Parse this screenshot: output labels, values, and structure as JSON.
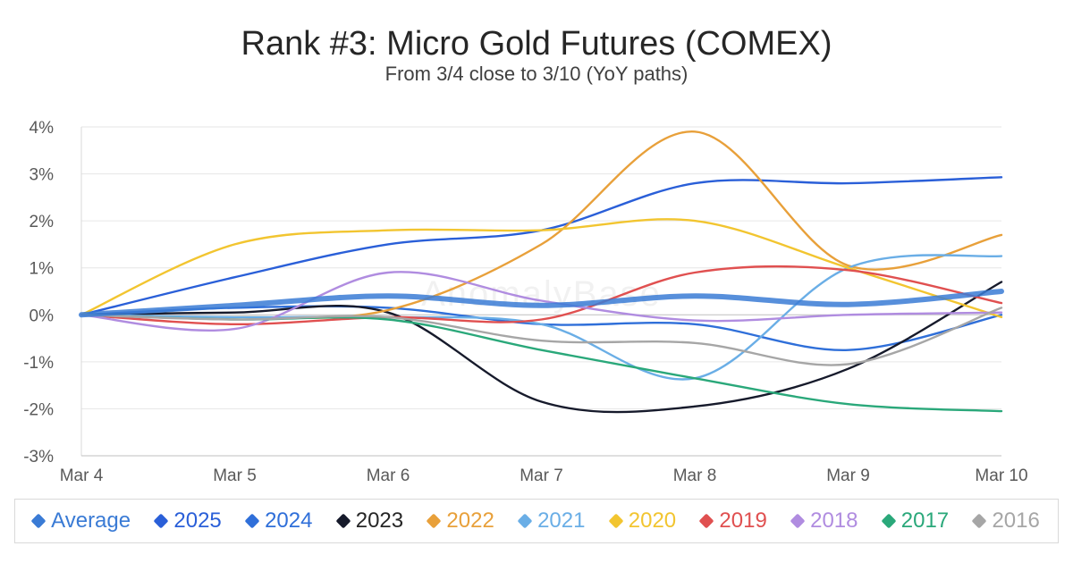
{
  "header": {
    "title": "Rank #3: Micro Gold Futures (COMEX)",
    "subtitle": "From 3/4 close to 3/10 (YoY paths)"
  },
  "watermark": "AnomalyBase",
  "chart_data": {
    "type": "line",
    "title": "Rank #3: Micro Gold Futures (COMEX)",
    "subtitle": "From 3/4 close to 3/10 (YoY paths)",
    "x": [
      "Mar 4",
      "Mar 5",
      "Mar 6",
      "Mar 7",
      "Mar 8",
      "Mar 9",
      "Mar 10"
    ],
    "yticks": [
      "4%",
      "3%",
      "2%",
      "1%",
      "0%",
      "-1%",
      "-2%",
      "-3%"
    ],
    "ylim": [
      -3,
      4
    ],
    "y_unit": "%",
    "grid": "horizontal",
    "legend": "bottom",
    "series": [
      {
        "name": "Average",
        "color": "#3a7bd5",
        "values": [
          0,
          0.2,
          0.4,
          0.2,
          0.4,
          0.22,
          0.5
        ]
      },
      {
        "name": "2025",
        "color": "#2a5fd8",
        "values": [
          0,
          0.8,
          1.5,
          1.8,
          2.8,
          2.8,
          2.93
        ]
      },
      {
        "name": "2024",
        "color": "#2f6fd9",
        "values": [
          0,
          0.15,
          0.15,
          -0.2,
          -0.2,
          -0.75,
          0
        ]
      },
      {
        "name": "2023",
        "color": "#161a2b",
        "values": [
          0,
          0.05,
          0.05,
          -1.85,
          -1.95,
          -1.15,
          0.7
        ]
      },
      {
        "name": "2022",
        "color": "#e8a03a",
        "values": [
          0,
          -0.05,
          0.1,
          1.5,
          3.9,
          1.05,
          1.7
        ]
      },
      {
        "name": "2021",
        "color": "#6aaee6",
        "values": [
          0,
          -0.05,
          -0.05,
          -0.2,
          -1.35,
          1.0,
          1.25
        ]
      },
      {
        "name": "2020",
        "color": "#f2c530",
        "values": [
          0,
          1.5,
          1.8,
          1.8,
          2.0,
          1.0,
          -0.05
        ]
      },
      {
        "name": "2019",
        "color": "#e05050",
        "values": [
          0,
          -0.2,
          -0.05,
          -0.1,
          0.9,
          0.95,
          0.25
        ]
      },
      {
        "name": "2018",
        "color": "#b08ce0",
        "values": [
          0,
          -0.3,
          0.9,
          0.3,
          -0.12,
          0.0,
          0.05
        ]
      },
      {
        "name": "2017",
        "color": "#2aa87a",
        "values": [
          0,
          -0.1,
          -0.1,
          -0.75,
          -1.35,
          -1.9,
          -2.05
        ]
      },
      {
        "name": "2016",
        "color": "#a6a6a6",
        "values": [
          0,
          -0.1,
          -0.05,
          -0.55,
          -0.6,
          -1.05,
          0.15
        ]
      }
    ]
  }
}
